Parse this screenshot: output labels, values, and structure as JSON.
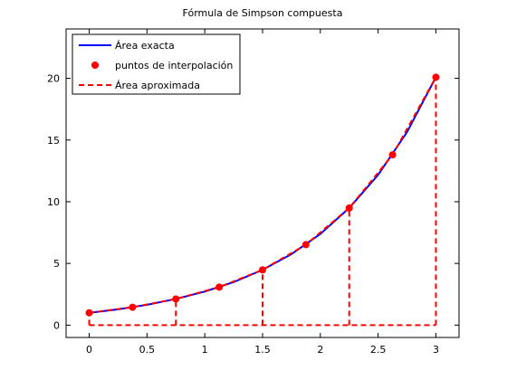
{
  "chart_data": {
    "type": "line",
    "title": "Fórmula de Simpson compuesta",
    "xlabel": "",
    "ylabel": "",
    "xlim": [
      -0.2,
      3.2
    ],
    "ylim": [
      -1,
      24
    ],
    "xticks": [
      0,
      0.5,
      1,
      1.5,
      2,
      2.5,
      3
    ],
    "xtick_labels": [
      "0",
      "0.5",
      "1",
      "1.5",
      "2",
      "2.5",
      "3"
    ],
    "yticks": [
      0,
      5,
      10,
      15,
      20
    ],
    "ytick_labels": [
      "0",
      "5",
      "10",
      "15",
      "20"
    ],
    "grid": false,
    "legend_position": "top-left",
    "series": [
      {
        "name": "Área exacta",
        "style": "solid-line",
        "color": "#0000ff",
        "x": [
          0,
          0.25,
          0.5,
          0.75,
          1,
          1.25,
          1.5,
          1.75,
          2,
          2.25,
          2.5,
          2.75,
          3
        ],
        "y": [
          1,
          1.28,
          1.65,
          2.12,
          2.72,
          3.49,
          4.48,
          5.75,
          7.39,
          9.49,
          12.18,
          15.64,
          20.09
        ]
      },
      {
        "name": "puntos de interpolación",
        "style": "markers",
        "color": "#ff0000",
        "x": [
          0,
          0.375,
          0.75,
          1.125,
          1.5,
          1.875,
          2.25,
          2.625,
          3
        ],
        "y": [
          1,
          1.45,
          2.12,
          3.08,
          4.48,
          6.52,
          9.49,
          13.8,
          20.09
        ]
      },
      {
        "name": "Área aproximada",
        "style": "dashed-line",
        "color": "#ff0000",
        "x": [
          0,
          0.375,
          0.75,
          1.125,
          1.5,
          1.875,
          2.25,
          2.625,
          3
        ],
        "y": [
          1,
          1.45,
          2.12,
          3.08,
          4.48,
          6.52,
          9.49,
          13.8,
          20.09
        ],
        "vertical_lines_x": [
          0,
          0.75,
          1.5,
          2.25,
          3
        ]
      }
    ]
  }
}
